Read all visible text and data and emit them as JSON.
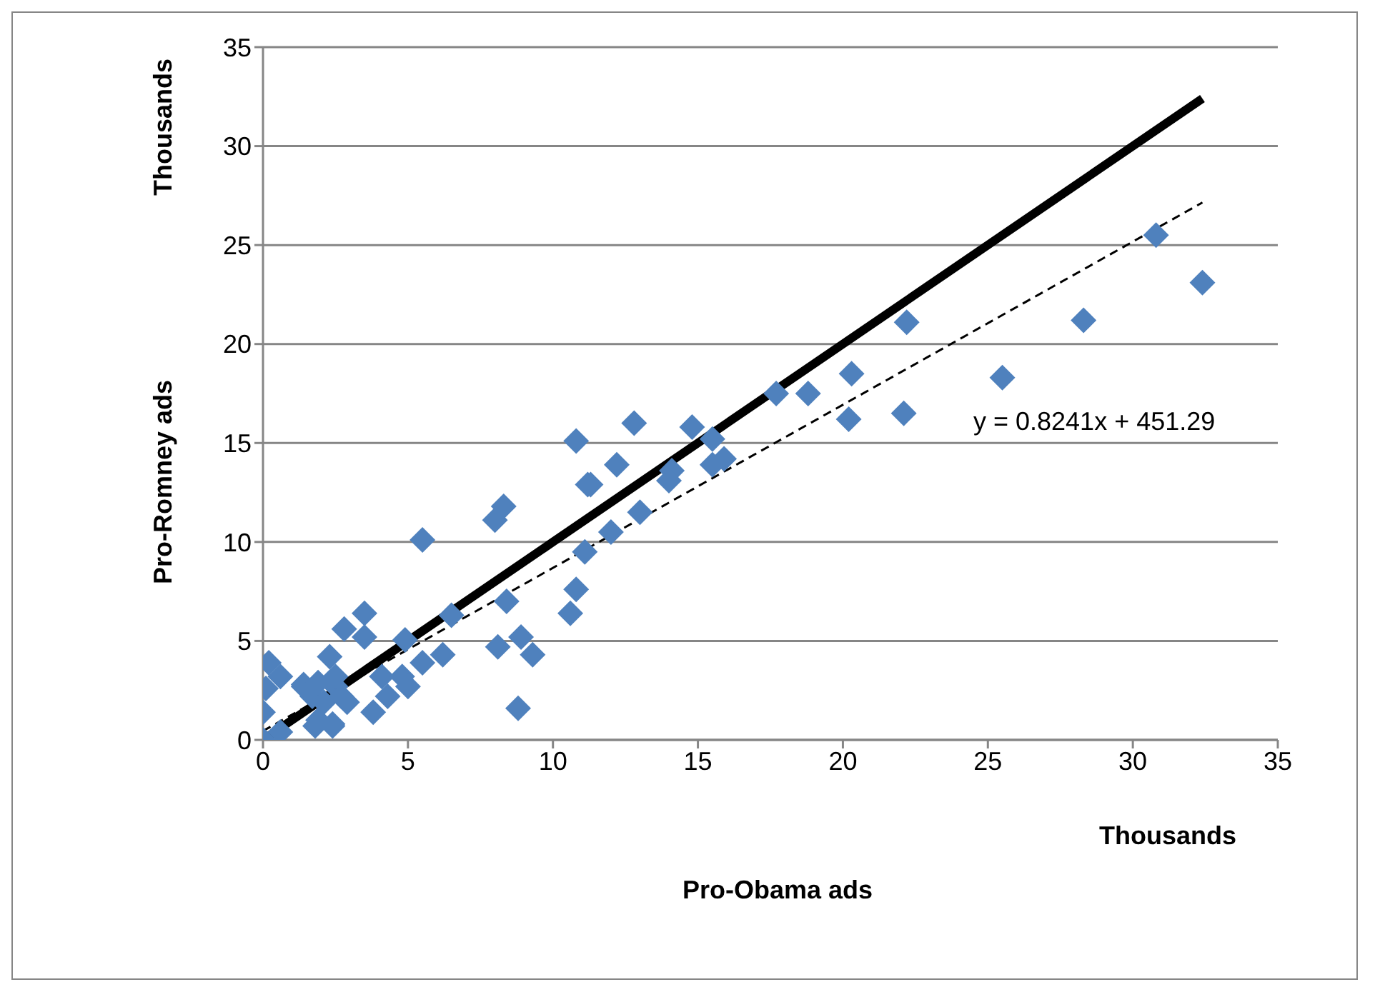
{
  "chart_data": {
    "type": "scatter",
    "xlabel": "Pro-Obama ads",
    "ylabel": "Pro-Romney ads",
    "annotations": [
      "y = 0.8241x + 451.29",
      "Thousands",
      "Thousands"
    ],
    "xlim": [
      0,
      35
    ],
    "xticks": [
      0,
      5,
      10,
      15,
      20,
      25,
      30,
      35
    ],
    "ylim": [
      0,
      35
    ],
    "yticks": [
      0,
      5,
      10,
      15,
      20,
      25,
      30,
      35
    ],
    "grid": "y",
    "marker": "diamond",
    "series": [
      {
        "color": "#4f81bd",
        "x": [
          0,
          0,
          0.1,
          0.2,
          0.6,
          0.6,
          1.4,
          1.7,
          1.9,
          2.1,
          2.3,
          2.4,
          2.5,
          2.7,
          2.8,
          1.4,
          1.9,
          2.5,
          2.9,
          1.8,
          2.4,
          3.5,
          3.5,
          3.8,
          4.1,
          4.3,
          4.8,
          4.9,
          5.0,
          5.5,
          6.2,
          6.5,
          5.5,
          8.0,
          8.3,
          8.4,
          8.1,
          8.9,
          9.3,
          8.8,
          10.6,
          10.8,
          11.1,
          11.3,
          12.0,
          10.8,
          12.8,
          14.8,
          15.5,
          15.9,
          15.5,
          14.1,
          14.0,
          12.2,
          11.2,
          13.0,
          17.7,
          18.8,
          20.2,
          20.3,
          22.1,
          22.2,
          25.5,
          28.3,
          30.8,
          32.4
        ],
        "values": [
          0,
          1.4,
          2.6,
          3.9,
          3.2,
          0.4,
          2.7,
          2.2,
          1.0,
          1.9,
          4.2,
          0.8,
          2.7,
          2.2,
          5.6,
          2.8,
          2.9,
          3.2,
          1.9,
          0.7,
          0.7,
          6.4,
          5.2,
          1.4,
          3.2,
          2.2,
          3.2,
          5.05,
          2.7,
          3.9,
          4.3,
          6.3,
          10.1,
          11.1,
          11.8,
          7.0,
          4.7,
          5.2,
          4.3,
          1.6,
          6.4,
          7.6,
          9.5,
          12.9,
          10.5,
          15.1,
          16.0,
          15.8,
          15.2,
          14.2,
          13.9,
          13.6,
          13.1,
          13.9,
          12.9,
          11.5,
          17.5,
          17.5,
          16.2,
          18.5,
          16.5,
          21.1,
          18.3,
          21.2,
          25.5,
          23.1
        ]
      },
      {
        "type": "line",
        "color": "#000000",
        "x": [
          0,
          32.4
        ],
        "values": [
          0,
          32.4
        ],
        "line_style": "solid",
        "marker": "none"
      },
      {
        "type": "line",
        "color": "#000000",
        "x": [
          0,
          32.4
        ],
        "values": [
          0.45,
          27.15
        ],
        "line_style": "dashed",
        "marker": "none"
      }
    ]
  }
}
